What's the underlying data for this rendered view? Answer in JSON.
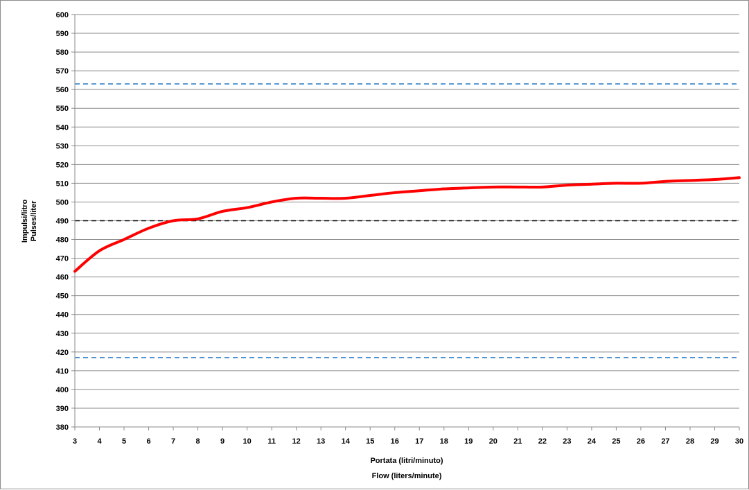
{
  "chart_data": {
    "type": "line",
    "xlabel": [
      "Portata (litri/minuto)",
      "Flow (liters/minute)"
    ],
    "ylabel": [
      "Impulsi/litro",
      "Pulses/liter"
    ],
    "xlim": [
      3,
      30
    ],
    "ylim": [
      380,
      600
    ],
    "x_ticks": [
      3,
      4,
      5,
      6,
      7,
      8,
      9,
      10,
      11,
      12,
      13,
      14,
      15,
      16,
      17,
      18,
      19,
      20,
      21,
      22,
      23,
      24,
      25,
      26,
      27,
      28,
      29,
      30
    ],
    "y_ticks": [
      380,
      390,
      400,
      410,
      420,
      430,
      440,
      450,
      460,
      470,
      480,
      490,
      500,
      510,
      520,
      530,
      540,
      550,
      560,
      570,
      580,
      590,
      600
    ],
    "grid": "horizontal",
    "series": [
      {
        "color": "#ff0000",
        "x": [
          3,
          4,
          5,
          6,
          7,
          8,
          9,
          10,
          11,
          12,
          13,
          14,
          15,
          16,
          17,
          18,
          19,
          20,
          21,
          22,
          23,
          24,
          25,
          26,
          27,
          28,
          29,
          30
        ],
        "y": [
          463,
          474,
          480,
          486,
          490,
          491,
          495,
          497,
          500,
          502,
          502,
          502,
          503.5,
          505,
          506,
          507,
          507.5,
          508,
          508,
          508,
          509,
          509.5,
          510,
          510,
          511,
          511.5,
          512,
          513
        ]
      }
    ],
    "reference_lines": [
      {
        "y": 563,
        "color": "#2e7fc8",
        "style": "dashed"
      },
      {
        "y": 490,
        "color": "#000000",
        "style": "dashed"
      },
      {
        "y": 417,
        "color": "#2e7fc8",
        "style": "dashed"
      }
    ]
  }
}
